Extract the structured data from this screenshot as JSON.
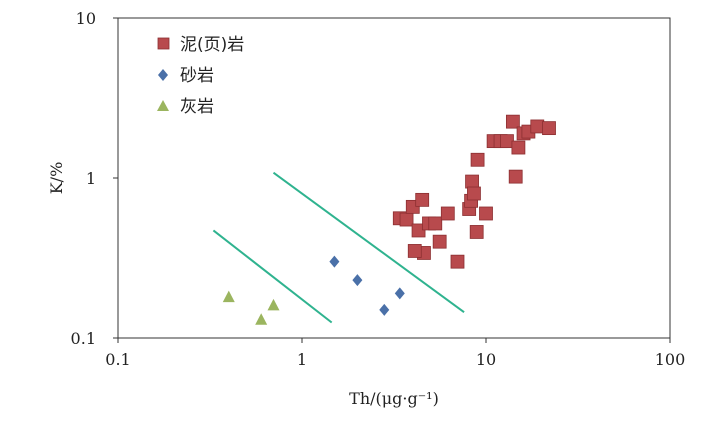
{
  "chart_data": {
    "type": "scatter",
    "xscale": "log",
    "yscale": "log",
    "xlim": [
      0.1,
      100
    ],
    "ylim": [
      0.1,
      10
    ],
    "xticks": [
      "0.1",
      "1",
      "10",
      "100"
    ],
    "yticks": [
      "0.1",
      "1",
      "10"
    ],
    "xlabel": "Th/(μg·g⁻¹)",
    "ylabel": "K/%",
    "legend_position": "top-left",
    "grid": false,
    "series": [
      {
        "name": "泥(页)岩",
        "marker": "square",
        "color": "#b84a4d",
        "points": [
          [
            3.4,
            0.56
          ],
          [
            3.7,
            0.55
          ],
          [
            4.0,
            0.66
          ],
          [
            4.3,
            0.47
          ],
          [
            4.5,
            0.73
          ],
          [
            4.6,
            0.34
          ],
          [
            4.9,
            0.52
          ],
          [
            5.3,
            0.52
          ],
          [
            5.6,
            0.4
          ],
          [
            4.1,
            0.35
          ],
          [
            6.2,
            0.6
          ],
          [
            7.0,
            0.3
          ],
          [
            8.1,
            0.64
          ],
          [
            8.3,
            0.72
          ],
          [
            8.4,
            0.95
          ],
          [
            8.6,
            0.8
          ],
          [
            9.0,
            1.3
          ],
          [
            8.9,
            0.46
          ],
          [
            10.0,
            0.6
          ],
          [
            11.0,
            1.7
          ],
          [
            12.0,
            1.7
          ],
          [
            13.0,
            1.7
          ],
          [
            14.0,
            2.25
          ],
          [
            14.5,
            1.02
          ],
          [
            15.0,
            1.55
          ],
          [
            16.0,
            1.9
          ],
          [
            17.0,
            1.95
          ],
          [
            19.0,
            2.1
          ],
          [
            22.0,
            2.05
          ]
        ]
      },
      {
        "name": "砂岩",
        "marker": "diamond",
        "color": "#4a70a8",
        "points": [
          [
            1.5,
            0.3
          ],
          [
            2.0,
            0.23
          ],
          [
            2.8,
            0.15
          ],
          [
            3.4,
            0.19
          ]
        ]
      },
      {
        "name": "灰岩",
        "marker": "triangle",
        "color": "#9bb55f",
        "points": [
          [
            0.4,
            0.18
          ],
          [
            0.6,
            0.13
          ],
          [
            0.7,
            0.16
          ]
        ]
      }
    ],
    "reference_lines": [
      {
        "color": "#2fb38f",
        "points": [
          [
            0.33,
            0.47
          ],
          [
            1.45,
            0.125
          ]
        ]
      },
      {
        "color": "#2fb38f",
        "points": [
          [
            0.7,
            1.08
          ],
          [
            7.6,
            0.145
          ]
        ]
      }
    ]
  }
}
